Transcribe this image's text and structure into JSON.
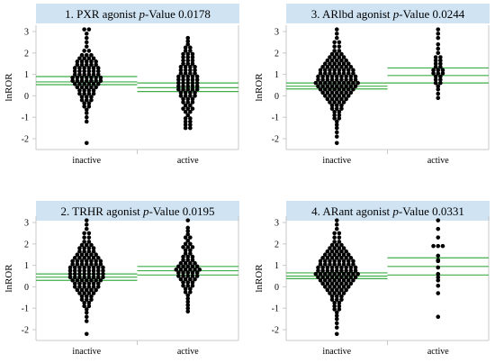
{
  "chart_data": [
    {
      "type": "scatter",
      "title_prefix": "1. PXR agonist",
      "title_p": "p",
      "title_suffix": "-Value  0.0178",
      "ylabel": "lnROR",
      "categories": [
        "inactive",
        "active"
      ],
      "ylim": [
        -2.5,
        3.3
      ],
      "yticks": [
        -2,
        -1,
        0,
        1,
        2,
        3
      ],
      "groups": [
        {
          "name": "inactive",
          "mean": 0.65,
          "ci": [
            0.52,
            0.9
          ],
          "values": [
            3.1,
            3.1,
            2.9,
            2.7,
            2.5,
            2.3,
            2.1,
            2.1,
            1.9,
            1.9,
            1.9,
            1.75,
            1.75,
            1.75,
            1.75,
            1.6,
            1.6,
            1.6,
            1.6,
            1.6,
            1.45,
            1.45,
            1.45,
            1.45,
            1.45,
            1.3,
            1.3,
            1.3,
            1.3,
            1.3,
            1.3,
            1.15,
            1.15,
            1.15,
            1.15,
            1.15,
            1.15,
            1.0,
            1.0,
            1.0,
            1.0,
            1.0,
            1.0,
            0.85,
            0.85,
            0.85,
            0.85,
            0.85,
            0.85,
            0.85,
            0.7,
            0.7,
            0.7,
            0.7,
            0.7,
            0.7,
            0.7,
            0.55,
            0.55,
            0.55,
            0.55,
            0.55,
            0.55,
            0.4,
            0.4,
            0.4,
            0.4,
            0.4,
            0.25,
            0.25,
            0.25,
            0.25,
            0.1,
            0.1,
            0.1,
            0.1,
            -0.05,
            -0.05,
            -0.05,
            -0.2,
            -0.2,
            -0.2,
            -0.35,
            -0.35,
            -0.5,
            -0.5,
            -0.65,
            -0.8,
            -1.0,
            -1.2,
            -2.2
          ]
        },
        {
          "name": "active",
          "mean": 0.38,
          "ci": [
            0.2,
            0.6
          ],
          "values": [
            2.7,
            2.55,
            2.4,
            2.25,
            2.25,
            2.1,
            2.1,
            1.95,
            1.95,
            1.95,
            1.8,
            1.8,
            1.8,
            1.65,
            1.65,
            1.65,
            1.5,
            1.5,
            1.5,
            1.35,
            1.35,
            1.35,
            1.35,
            1.2,
            1.2,
            1.2,
            1.2,
            1.05,
            1.05,
            1.05,
            1.05,
            0.9,
            0.9,
            0.9,
            0.9,
            0.9,
            0.75,
            0.75,
            0.75,
            0.75,
            0.75,
            0.6,
            0.6,
            0.6,
            0.6,
            0.6,
            0.45,
            0.45,
            0.45,
            0.45,
            0.45,
            0.3,
            0.3,
            0.3,
            0.3,
            0.3,
            0.15,
            0.15,
            0.15,
            0.15,
            0.0,
            0.0,
            0.0,
            0.0,
            -0.15,
            -0.15,
            -0.15,
            -0.3,
            -0.3,
            -0.3,
            -0.45,
            -0.45,
            -0.6,
            -0.6,
            -0.6,
            -0.75,
            -0.75,
            -0.9,
            -1.05,
            -1.05,
            -1.2,
            -1.2,
            -1.35,
            -1.35,
            -1.5,
            -1.5
          ]
        }
      ]
    },
    {
      "type": "scatter",
      "title_prefix": "3. ARlbd agonist",
      "title_p": "p",
      "title_suffix": "-Value  0.0244",
      "ylabel": "lnROR",
      "categories": [
        "inactive",
        "active"
      ],
      "ylim": [
        -2.5,
        3.3
      ],
      "yticks": [
        -2,
        -1,
        0,
        1,
        2,
        3
      ],
      "groups": [
        {
          "name": "inactive",
          "mean": 0.45,
          "ci": [
            0.32,
            0.6
          ],
          "values": [
            3.1,
            2.9,
            2.7,
            2.5,
            2.5,
            2.3,
            2.3,
            2.1,
            2.1,
            1.95,
            1.95,
            1.95,
            1.8,
            1.8,
            1.8,
            1.8,
            1.65,
            1.65,
            1.65,
            1.65,
            1.65,
            1.5,
            1.5,
            1.5,
            1.5,
            1.5,
            1.5,
            1.35,
            1.35,
            1.35,
            1.35,
            1.35,
            1.35,
            1.35,
            1.2,
            1.2,
            1.2,
            1.2,
            1.2,
            1.2,
            1.2,
            1.2,
            1.05,
            1.05,
            1.05,
            1.05,
            1.05,
            1.05,
            1.05,
            1.05,
            0.9,
            0.9,
            0.9,
            0.9,
            0.9,
            0.9,
            0.9,
            0.9,
            0.9,
            0.75,
            0.75,
            0.75,
            0.75,
            0.75,
            0.75,
            0.75,
            0.75,
            0.75,
            0.6,
            0.6,
            0.6,
            0.6,
            0.6,
            0.6,
            0.6,
            0.6,
            0.6,
            0.6,
            0.45,
            0.45,
            0.45,
            0.45,
            0.45,
            0.45,
            0.45,
            0.45,
            0.45,
            0.3,
            0.3,
            0.3,
            0.3,
            0.3,
            0.3,
            0.3,
            0.3,
            0.15,
            0.15,
            0.15,
            0.15,
            0.15,
            0.15,
            0.15,
            0.0,
            0.0,
            0.0,
            0.0,
            0.0,
            0.0,
            -0.15,
            -0.15,
            -0.15,
            -0.15,
            -0.15,
            -0.3,
            -0.3,
            -0.3,
            -0.3,
            -0.45,
            -0.45,
            -0.45,
            -0.6,
            -0.6,
            -0.6,
            -0.75,
            -0.75,
            -0.9,
            -0.9,
            -1.05,
            -1.05,
            -1.2,
            -1.35,
            -1.5,
            -1.7,
            -1.9,
            -2.2
          ]
        },
        {
          "name": "active",
          "mean": 0.95,
          "ci": [
            0.6,
            1.3
          ],
          "values": [
            3.1,
            2.9,
            2.7,
            2.4,
            2.2,
            2.0,
            1.8,
            1.8,
            1.65,
            1.65,
            1.5,
            1.5,
            1.35,
            1.35,
            1.2,
            1.2,
            1.2,
            1.05,
            1.05,
            1.05,
            0.9,
            0.9,
            0.75,
            0.75,
            0.6,
            0.6,
            0.45,
            0.3,
            0.1,
            -0.1
          ]
        }
      ]
    },
    {
      "type": "scatter",
      "title_prefix": "2. TRHR agonist",
      "title_p": "p",
      "title_suffix": "-Value  0.0195",
      "ylabel": "lnROR",
      "categories": [
        "inactive",
        "active"
      ],
      "ylim": [
        -2.5,
        3.3
      ],
      "yticks": [
        -2,
        -1,
        0,
        1,
        2,
        3
      ],
      "groups": [
        {
          "name": "inactive",
          "mean": 0.45,
          "ci": [
            0.3,
            0.6
          ],
          "values": [
            3.1,
            2.9,
            2.7,
            2.5,
            2.5,
            2.3,
            2.3,
            2.1,
            2.1,
            1.95,
            1.95,
            1.95,
            1.8,
            1.8,
            1.8,
            1.8,
            1.65,
            1.65,
            1.65,
            1.65,
            1.5,
            1.5,
            1.5,
            1.5,
            1.5,
            1.35,
            1.35,
            1.35,
            1.35,
            1.35,
            1.35,
            1.2,
            1.2,
            1.2,
            1.2,
            1.2,
            1.2,
            1.2,
            1.05,
            1.05,
            1.05,
            1.05,
            1.05,
            1.05,
            1.05,
            0.9,
            0.9,
            0.9,
            0.9,
            0.9,
            0.9,
            0.9,
            0.9,
            0.75,
            0.75,
            0.75,
            0.75,
            0.75,
            0.75,
            0.75,
            0.75,
            0.6,
            0.6,
            0.6,
            0.6,
            0.6,
            0.6,
            0.6,
            0.6,
            0.45,
            0.45,
            0.45,
            0.45,
            0.45,
            0.45,
            0.45,
            0.45,
            0.3,
            0.3,
            0.3,
            0.3,
            0.3,
            0.3,
            0.3,
            0.15,
            0.15,
            0.15,
            0.15,
            0.15,
            0.15,
            0.0,
            0.0,
            0.0,
            0.0,
            0.0,
            0.0,
            -0.15,
            -0.15,
            -0.15,
            -0.15,
            -0.15,
            -0.3,
            -0.3,
            -0.3,
            -0.3,
            -0.45,
            -0.45,
            -0.45,
            -0.6,
            -0.6,
            -0.6,
            -0.75,
            -0.75,
            -0.9,
            -0.9,
            -1.05,
            -1.2,
            -1.4,
            -1.6,
            -2.2
          ]
        },
        {
          "name": "active",
          "mean": 0.75,
          "ci": [
            0.55,
            0.95
          ],
          "values": [
            3.1,
            2.75,
            2.6,
            2.45,
            2.3,
            2.3,
            2.15,
            2.0,
            2.0,
            1.85,
            1.85,
            1.85,
            1.7,
            1.7,
            1.55,
            1.55,
            1.4,
            1.4,
            1.4,
            1.25,
            1.25,
            1.25,
            1.1,
            1.1,
            1.1,
            1.1,
            0.95,
            0.95,
            0.95,
            0.95,
            0.95,
            0.8,
            0.8,
            0.8,
            0.8,
            0.8,
            0.8,
            0.65,
            0.65,
            0.65,
            0.65,
            0.65,
            0.5,
            0.5,
            0.5,
            0.5,
            0.5,
            0.35,
            0.35,
            0.35,
            0.35,
            0.2,
            0.2,
            0.2,
            0.05,
            0.05,
            0.05,
            -0.1,
            -0.1,
            -0.25,
            -0.25,
            -0.4,
            -0.55,
            -0.7,
            -0.85,
            -1.0,
            -1.15
          ]
        }
      ]
    },
    {
      "type": "scatter",
      "title_prefix": "4. ARant agonist",
      "title_p": "p",
      "title_suffix": "-Value  0.0331",
      "ylabel": "lnROR",
      "categories": [
        "inactive",
        "active"
      ],
      "ylim": [
        -2.5,
        3.3
      ],
      "yticks": [
        -2,
        -1,
        0,
        1,
        2,
        3
      ],
      "groups": [
        {
          "name": "inactive",
          "mean": 0.5,
          "ci": [
            0.38,
            0.65
          ],
          "values": [
            3.1,
            2.9,
            2.7,
            2.5,
            2.5,
            2.3,
            2.3,
            2.1,
            2.1,
            1.95,
            1.95,
            1.95,
            1.8,
            1.8,
            1.8,
            1.8,
            1.65,
            1.65,
            1.65,
            1.65,
            1.65,
            1.5,
            1.5,
            1.5,
            1.5,
            1.5,
            1.5,
            1.35,
            1.35,
            1.35,
            1.35,
            1.35,
            1.35,
            1.35,
            1.2,
            1.2,
            1.2,
            1.2,
            1.2,
            1.2,
            1.2,
            1.2,
            1.05,
            1.05,
            1.05,
            1.05,
            1.05,
            1.05,
            1.05,
            1.05,
            0.9,
            0.9,
            0.9,
            0.9,
            0.9,
            0.9,
            0.9,
            0.9,
            0.9,
            0.75,
            0.75,
            0.75,
            0.75,
            0.75,
            0.75,
            0.75,
            0.75,
            0.75,
            0.6,
            0.6,
            0.6,
            0.6,
            0.6,
            0.6,
            0.6,
            0.6,
            0.6,
            0.6,
            0.45,
            0.45,
            0.45,
            0.45,
            0.45,
            0.45,
            0.45,
            0.45,
            0.45,
            0.3,
            0.3,
            0.3,
            0.3,
            0.3,
            0.3,
            0.3,
            0.3,
            0.15,
            0.15,
            0.15,
            0.15,
            0.15,
            0.15,
            0.15,
            0.0,
            0.0,
            0.0,
            0.0,
            0.0,
            0.0,
            -0.15,
            -0.15,
            -0.15,
            -0.15,
            -0.15,
            -0.3,
            -0.3,
            -0.3,
            -0.3,
            -0.45,
            -0.45,
            -0.45,
            -0.6,
            -0.6,
            -0.6,
            -0.75,
            -0.75,
            -0.9,
            -0.9,
            -1.05,
            -1.05,
            -1.2,
            -1.35,
            -1.5,
            -1.7,
            -1.9,
            -2.2
          ]
        },
        {
          "name": "active",
          "mean": 0.95,
          "ci": [
            0.55,
            1.35
          ],
          "values": [
            3.1,
            2.7,
            2.3,
            1.9,
            1.9,
            1.9,
            1.45,
            1.25,
            1.2,
            0.9,
            0.6,
            0.45,
            0.3,
            0.05,
            -0.3,
            -1.4
          ]
        }
      ]
    }
  ],
  "colors": {
    "title_bg": "#cfe3f3",
    "dot": "#000000",
    "ci_line": "#3fae49",
    "frame": "#c8c8c8"
  }
}
